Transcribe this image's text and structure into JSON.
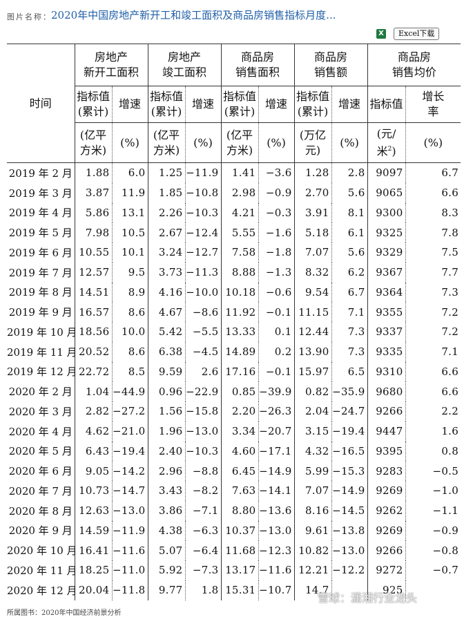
{
  "header": {
    "label": "图片名称：",
    "title": "2020年中国房地产新开工和竣工面积及商品房销售指标月度..."
  },
  "download": {
    "icon": "excel-icon",
    "label": "Excel下载"
  },
  "table": {
    "time_header": "时间",
    "groups": [
      [
        "房地产",
        "新开工面积"
      ],
      [
        "房地产",
        "竣工面积"
      ],
      [
        "商品房",
        "销售面积"
      ],
      [
        "商品房",
        "销售额"
      ],
      [
        "商品房",
        "销售均价"
      ]
    ],
    "subheads": [
      [
        "指标值",
        "(累计)"
      ],
      [
        "增速"
      ],
      [
        "指标值",
        "(累计)"
      ],
      [
        "增速"
      ],
      [
        "指标值",
        "(累计)"
      ],
      [
        "增速"
      ],
      [
        "指标值",
        "(累计)"
      ],
      [
        "增速"
      ],
      [
        "指标值"
      ],
      [
        "增长",
        "率"
      ]
    ],
    "units": [
      [
        "(亿平",
        "方米)"
      ],
      [
        "(%)"
      ],
      [
        "(亿平",
        "方米)"
      ],
      [
        "(%)"
      ],
      [
        "(亿平",
        "方米)"
      ],
      [
        "(%)"
      ],
      [
        "(万亿",
        "元)"
      ],
      [
        "(%)"
      ],
      [
        "(元/",
        "米"
      ],
      [
        "(%)"
      ]
    ],
    "unit_sup": "2",
    "rows": [
      [
        "2019 年 2 月",
        "1.88",
        "6.0",
        "1.25",
        "−11.9",
        "1.41",
        "−3.6",
        "1.28",
        "2.8",
        "9097",
        "6.7"
      ],
      [
        "2019 年 3 月",
        "3.87",
        "11.9",
        "1.85",
        "−10.8",
        "2.98",
        "−0.9",
        "2.70",
        "5.6",
        "9065",
        "6.6"
      ],
      [
        "2019 年 4 月",
        "5.86",
        "13.1",
        "2.26",
        "−10.3",
        "4.21",
        "−0.3",
        "3.91",
        "8.1",
        "9300",
        "8.3"
      ],
      [
        "2019 年 5 月",
        "7.98",
        "10.5",
        "2.67",
        "−12.4",
        "5.55",
        "−1.6",
        "5.18",
        "6.1",
        "9325",
        "7.8"
      ],
      [
        "2019 年 6 月",
        "10.55",
        "10.1",
        "3.24",
        "−12.7",
        "7.58",
        "−1.8",
        "7.07",
        "5.6",
        "9329",
        "7.5"
      ],
      [
        "2019 年 7 月",
        "12.57",
        "9.5",
        "3.73",
        "−11.3",
        "8.88",
        "−1.3",
        "8.32",
        "6.2",
        "9367",
        "7.7"
      ],
      [
        "2019 年 8 月",
        "14.51",
        "8.9",
        "4.16",
        "−10.0",
        "10.18",
        "−0.6",
        "9.54",
        "6.7",
        "9364",
        "7.3"
      ],
      [
        "2019 年 9 月",
        "16.57",
        "8.6",
        "4.67",
        "−8.6",
        "11.92",
        "−0.1",
        "11.15",
        "7.1",
        "9355",
        "7.2"
      ],
      [
        "2019 年 10 月",
        "18.56",
        "10.0",
        "5.42",
        "−5.5",
        "13.33",
        "0.1",
        "12.44",
        "7.3",
        "9337",
        "7.2"
      ],
      [
        "2019 年 11 月",
        "20.52",
        "8.6",
        "6.38",
        "−4.5",
        "14.89",
        "0.2",
        "13.90",
        "7.3",
        "9335",
        "7.1"
      ],
      [
        "2019 年 12 月",
        "22.72",
        "8.5",
        "9.59",
        "2.6",
        "17.16",
        "−0.1",
        "15.97",
        "6.5",
        "9310",
        "6.6"
      ],
      [
        "2020 年 2 月",
        "1.04",
        "−44.9",
        "0.96",
        "−22.9",
        "0.85",
        "−39.9",
        "0.82",
        "−35.9",
        "9680",
        "6.6"
      ],
      [
        "2020 年 3 月",
        "2.82",
        "−27.2",
        "1.56",
        "−15.8",
        "2.20",
        "−26.3",
        "2.04",
        "−24.7",
        "9266",
        "2.2"
      ],
      [
        "2020 年 4 月",
        "4.62",
        "−21.0",
        "1.96",
        "−13.0",
        "3.34",
        "−20.7",
        "3.15",
        "−19.4",
        "9447",
        "1.6"
      ],
      [
        "2020 年 5 月",
        "6.43",
        "−19.4",
        "2.40",
        "−10.3",
        "4.60",
        "−17.1",
        "4.32",
        "−16.5",
        "9395",
        "0.8"
      ],
      [
        "2020 年 6 月",
        "9.05",
        "−14.2",
        "2.96",
        "−8.8",
        "6.45",
        "−14.9",
        "5.99",
        "−15.3",
        "9283",
        "−0.5"
      ],
      [
        "2020 年 7 月",
        "10.73",
        "−14.7",
        "3.43",
        "−8.2",
        "7.63",
        "−14.1",
        "7.07",
        "−14.9",
        "9269",
        "−1.0"
      ],
      [
        "2020 年 8 月",
        "12.63",
        "−13.0",
        "3.86",
        "−7.1",
        "8.80",
        "−13.6",
        "8.16",
        "−14.5",
        "9262",
        "−1.1"
      ],
      [
        "2020 年 9 月",
        "14.59",
        "−11.9",
        "4.38",
        "−6.3",
        "10.37",
        "−13.0",
        "9.61",
        "−13.8",
        "9269",
        "−0.9"
      ],
      [
        "2020 年 10 月",
        "16.41",
        "−11.6",
        "5.07",
        "−6.4",
        "11.68",
        "−12.3",
        "10.82",
        "−13.0",
        "9266",
        "−0.8"
      ],
      [
        "2020 年 11 月",
        "18.25",
        "−11.0",
        "5.92",
        "−7.3",
        "13.17",
        "−11.6",
        "12.21",
        "−12.2",
        "9272",
        "−0.7"
      ],
      [
        "2020 年 12 月",
        "20.04",
        "−11.8",
        "9.77",
        "1.8",
        "15.31",
        "−10.7",
        "14.7",
        "",
        "925",
        ""
      ]
    ]
  },
  "footer": "所属图书：2020年中国经济前景分析",
  "watermark": "雪球：潇湘行业龙头"
}
